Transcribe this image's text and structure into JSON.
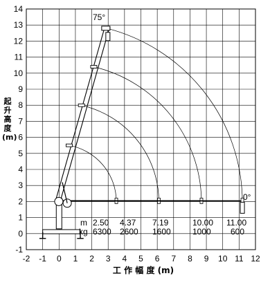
{
  "chart_data": {
    "type": "diagram",
    "xlabel": "工 作 幅 度 (m)",
    "ylabel": "起 升 高 度 (m)",
    "xlim": [
      -2,
      12
    ],
    "ylim": [
      -1,
      14
    ],
    "x_ticks": [
      "-2",
      "-1",
      "0",
      "1",
      "2",
      "3",
      "4",
      "5",
      "6",
      "7",
      "8",
      "9",
      "10",
      "11",
      "12"
    ],
    "y_ticks": [
      "-1",
      "0",
      "1",
      "2",
      "3",
      "4",
      "5",
      "6",
      "7",
      "8",
      "9",
      "10",
      "11",
      "12",
      "13",
      "14"
    ],
    "grid": true,
    "angle_labels": [
      "75°",
      "0°"
    ],
    "boom_pivot": {
      "x": -0.1,
      "y": 2.0
    },
    "boom_tips_75deg": [
      {
        "x": 0.6,
        "y": 5.5
      },
      {
        "x": 1.35,
        "y": 8.0
      },
      {
        "x": 2.1,
        "y": 10.4
      },
      {
        "x": 2.9,
        "y": 12.8
      }
    ],
    "reach_arcs_end_x": [
      3.5,
      6.1,
      8.7,
      11.2
    ],
    "unit_labels": {
      "radius": "m",
      "load": "kg"
    },
    "load_table": {
      "radius_m": [
        "2.50",
        "4.37",
        "7.19",
        "10.00",
        "11.00"
      ],
      "load_kg": [
        "6300",
        "2600",
        "1600",
        "1000",
        "600"
      ]
    }
  }
}
